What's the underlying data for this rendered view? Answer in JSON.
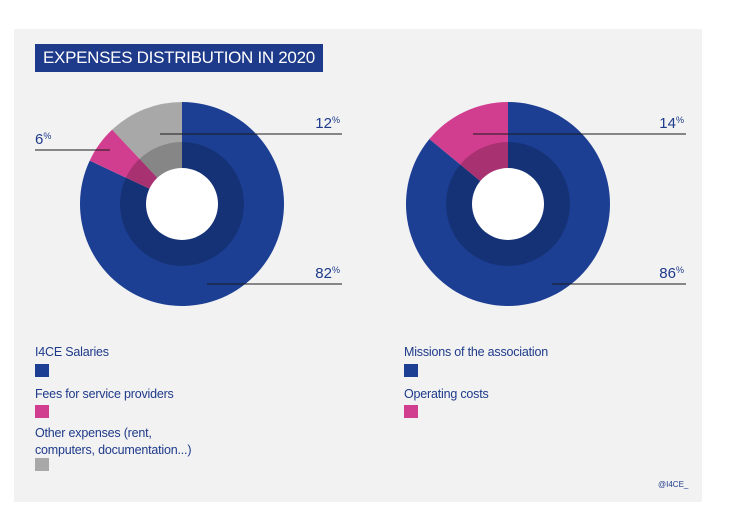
{
  "title": "EXPENSES DISTRIBUTION IN 2020",
  "colors": {
    "blue": "#1c3f94",
    "pink": "#d23e8f",
    "gray": "#a8a8a8",
    "navy_text": "#1e3a8a"
  },
  "chart_data": [
    {
      "type": "pie",
      "variant": "donut",
      "slices": [
        {
          "label": "I4CE Salaries",
          "value": 82,
          "display": "82",
          "color": "#1c3f94"
        },
        {
          "label": "Fees for service providers",
          "value": 6,
          "display": "6",
          "color": "#d23e8f"
        },
        {
          "label": "Other expenses (rent, computers, documentation...)",
          "value": 12,
          "display": "12",
          "color": "#a8a8a8"
        }
      ],
      "unit": "%"
    },
    {
      "type": "pie",
      "variant": "donut",
      "slices": [
        {
          "label": "Missions of the association",
          "value": 86,
          "display": "86",
          "color": "#1c3f94"
        },
        {
          "label": "Operating costs",
          "value": 14,
          "display": "14",
          "color": "#d23e8f"
        }
      ],
      "unit": "%"
    }
  ],
  "legend_left": [
    {
      "label": "I4CE Salaries",
      "color": "#1c3f94"
    },
    {
      "label": "Fees for service providers",
      "color": "#d23e8f"
    },
    {
      "label_line1": "Other expenses (rent,",
      "label_line2": "computers, documentation...)",
      "color": "#a8a8a8"
    }
  ],
  "legend_right": [
    {
      "label": "Missions of the association",
      "color": "#1c3f94"
    },
    {
      "label": "Operating costs",
      "color": "#d23e8f"
    }
  ],
  "credit": "@I4CE_"
}
